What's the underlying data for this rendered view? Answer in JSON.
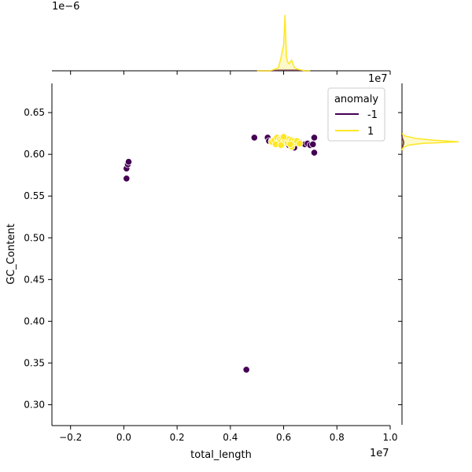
{
  "chart_data": {
    "type": "scatter",
    "title": "",
    "xlabel": "total_length",
    "ylabel": "GC_Content",
    "x_scale_label": "1e7",
    "y_scale_label": "",
    "top_marginal_scale_label": "1e−6",
    "right_marginal_scale_label": "1e7",
    "xlim": [
      -0.27,
      1.0
    ],
    "ylim": [
      0.275,
      0.685
    ],
    "x_ticks": [
      -0.2,
      0.0,
      0.2,
      0.4,
      0.6,
      0.8,
      1.0
    ],
    "x_tick_labels": [
      "−0.2",
      "0.0",
      "0.2",
      "0.4",
      "0.6",
      "0.8",
      "1.0"
    ],
    "y_ticks": [
      0.3,
      0.35,
      0.4,
      0.45,
      0.5,
      0.55,
      0.6,
      0.65
    ],
    "y_tick_labels": [
      "0.30",
      "0.35",
      "0.40",
      "0.45",
      "0.50",
      "0.55",
      "0.60",
      "0.65"
    ],
    "grid": false,
    "legend": {
      "title": "anomaly",
      "placement": "top-right",
      "entries": [
        {
          "label": "-1",
          "color": "#440154"
        },
        {
          "label": "1",
          "color": "#fde725"
        }
      ]
    },
    "series": [
      {
        "name": "-1",
        "color": "#440154",
        "points": [
          [
            0.01,
            0.571
          ],
          [
            0.01,
            0.583
          ],
          [
            0.015,
            0.588
          ],
          [
            0.018,
            0.591
          ],
          [
            0.46,
            0.342
          ],
          [
            0.49,
            0.62
          ],
          [
            0.54,
            0.62
          ],
          [
            0.545,
            0.616
          ],
          [
            0.555,
            0.616
          ],
          [
            0.6,
            0.617
          ],
          [
            0.61,
            0.615
          ],
          [
            0.62,
            0.611
          ],
          [
            0.64,
            0.608
          ],
          [
            0.66,
            0.614
          ],
          [
            0.68,
            0.612
          ],
          [
            0.69,
            0.613
          ],
          [
            0.7,
            0.611
          ],
          [
            0.71,
            0.612
          ],
          [
            0.715,
            0.602
          ],
          [
            0.715,
            0.62
          ]
        ]
      },
      {
        "name": "1",
        "color": "#fde725",
        "points": [
          [
            0.555,
            0.615
          ],
          [
            0.565,
            0.617
          ],
          [
            0.575,
            0.62
          ],
          [
            0.58,
            0.614
          ],
          [
            0.585,
            0.618
          ],
          [
            0.59,
            0.616
          ],
          [
            0.595,
            0.62
          ],
          [
            0.6,
            0.613
          ],
          [
            0.605,
            0.617
          ],
          [
            0.61,
            0.619
          ],
          [
            0.615,
            0.614
          ],
          [
            0.62,
            0.618
          ],
          [
            0.625,
            0.615
          ],
          [
            0.63,
            0.617
          ],
          [
            0.635,
            0.613
          ],
          [
            0.64,
            0.616
          ],
          [
            0.645,
            0.614
          ],
          [
            0.65,
            0.616
          ],
          [
            0.66,
            0.613
          ],
          [
            0.63,
            0.609
          ],
          [
            0.625,
            0.612
          ],
          [
            0.57,
            0.612
          ],
          [
            0.59,
            0.611
          ],
          [
            0.6,
            0.621
          ]
        ]
      }
    ],
    "marginal_top": {
      "x": [
        0.5,
        0.55,
        0.58,
        0.59,
        0.6,
        0.605,
        0.61,
        0.615,
        0.62,
        0.63,
        0.64,
        0.65,
        0.66,
        0.68,
        0.7
      ],
      "series": [
        {
          "name": "-1",
          "color": "#440154",
          "density": [
            0.0,
            0.0,
            0.01,
            0.01,
            0.01,
            0.01,
            0.01,
            0.01,
            0.01,
            0.01,
            0.01,
            0.01,
            0.01,
            0.0,
            0.0
          ]
        },
        {
          "name": "1",
          "color": "#fde725",
          "density": [
            0.0,
            0.0,
            0.05,
            0.22,
            0.45,
            0.95,
            0.25,
            0.15,
            0.12,
            0.18,
            0.06,
            0.03,
            0.02,
            0.0,
            0.0
          ]
        }
      ]
    },
    "marginal_right": {
      "y": [
        0.605,
        0.608,
        0.611,
        0.613,
        0.615,
        0.617,
        0.619,
        0.622,
        0.625
      ],
      "series": [
        {
          "name": "-1",
          "color": "#440154",
          "density": [
            0.0,
            0.01,
            0.02,
            0.03,
            0.03,
            0.02,
            0.01,
            0.0,
            0.0
          ]
        },
        {
          "name": "1",
          "color": "#fde725",
          "density": [
            0.0,
            0.02,
            0.12,
            0.35,
            1.0,
            0.55,
            0.25,
            0.05,
            0.0
          ]
        }
      ]
    }
  }
}
